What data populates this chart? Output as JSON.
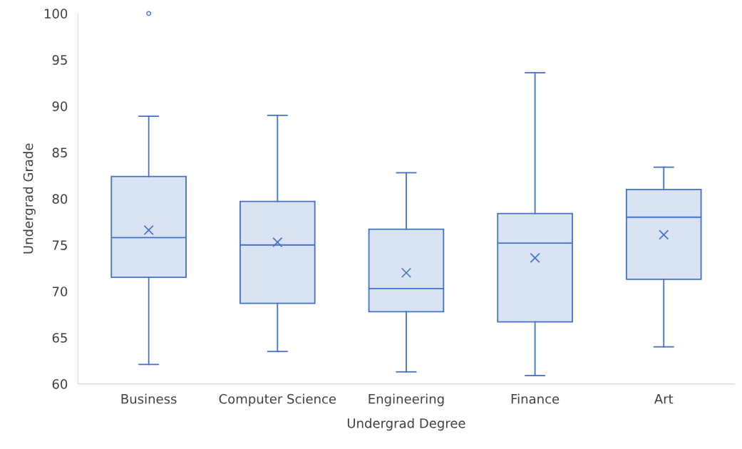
{
  "chart_data": {
    "type": "box",
    "xlabel": "Undergrad Degree",
    "ylabel": "Undergrad Grade",
    "categories": [
      "Business",
      "Computer Science",
      "Engineering",
      "Finance",
      "Art"
    ],
    "boxes": [
      {
        "low": 62.1,
        "q1": 71.5,
        "median": 75.8,
        "q3": 82.4,
        "high": 88.9,
        "mean": 76.6,
        "outliers": [
          100
        ]
      },
      {
        "low": 63.5,
        "q1": 68.7,
        "median": 75.0,
        "q3": 79.7,
        "high": 89.0,
        "mean": 75.3
      },
      {
        "low": 61.3,
        "q1": 67.8,
        "median": 70.3,
        "q3": 76.7,
        "high": 82.8,
        "mean": 72.0
      },
      {
        "low": 60.9,
        "q1": 66.7,
        "median": 75.2,
        "q3": 78.4,
        "high": 93.6,
        "mean": 73.6
      },
      {
        "low": 64.0,
        "q1": 71.3,
        "median": 78.0,
        "q3": 81.0,
        "high": 83.4,
        "mean": 76.1
      }
    ],
    "color": "#4472c4",
    "ylim": [
      60,
      100
    ],
    "yticks": [
      60,
      65,
      70,
      75,
      80,
      85,
      90,
      95,
      100
    ],
    "grid": false,
    "marker": "cross"
  }
}
